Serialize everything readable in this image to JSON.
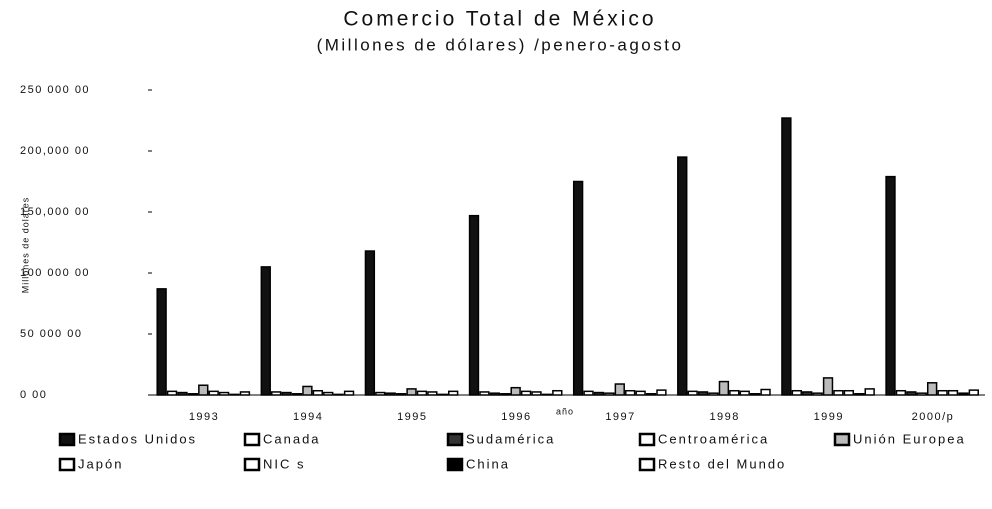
{
  "chart_data": {
    "type": "bar",
    "title": "Comercio Total de México",
    "subtitle": "(Millones de dólares) /penero-agosto",
    "x_label": "año",
    "y_label": "Millones de dolares",
    "categories": [
      "1993",
      "1994",
      "1995",
      "1996",
      "1997",
      "1998",
      "1999",
      "2000/p"
    ],
    "series": [
      {
        "name": "Estados Unidos",
        "color": "#111111",
        "values": [
          87000,
          105000,
          118000,
          147000,
          175000,
          195000,
          227000,
          179000
        ]
      },
      {
        "name": "Canada",
        "color": "#ffffff",
        "values": [
          3000,
          2500,
          2000,
          2500,
          3000,
          3000,
          3500,
          3500
        ]
      },
      {
        "name": "Sudamérica",
        "color": "#333333",
        "values": [
          2000,
          2000,
          1500,
          1500,
          2000,
          2500,
          2500,
          2500
        ]
      },
      {
        "name": "Centroamérica",
        "color": "#ffffff",
        "values": [
          1000,
          1000,
          1000,
          1000,
          1500,
          1500,
          1500,
          1500
        ]
      },
      {
        "name": "Unión Europea",
        "color": "#bbbbbb",
        "values": [
          8000,
          7000,
          5000,
          6000,
          9000,
          11000,
          14000,
          10000
        ]
      },
      {
        "name": "Japón",
        "color": "#ffffff",
        "values": [
          3000,
          3500,
          3000,
          3000,
          3500,
          3500,
          3500,
          3500
        ]
      },
      {
        "name": "NIC s",
        "color": "#ffffff",
        "values": [
          2000,
          2000,
          2500,
          2500,
          3000,
          3000,
          3500,
          3500
        ]
      },
      {
        "name": "China",
        "color": "#000000",
        "values": [
          500,
          500,
          500,
          500,
          1000,
          1000,
          1000,
          1500
        ]
      },
      {
        "name": "Resto del Mundo",
        "color": "#ffffff",
        "values": [
          2500,
          3000,
          3000,
          3500,
          4000,
          4500,
          5000,
          4000
        ]
      }
    ],
    "ylim": [
      0,
      250000
    ],
    "yticks": [
      {
        "value": 0,
        "label": "0 00"
      },
      {
        "value": 50000,
        "label": "50 000 00"
      },
      {
        "value": 100000,
        "label": "100 000 00"
      },
      {
        "value": 150000,
        "label": "150,000 00"
      },
      {
        "value": 200000,
        "label": "200,000 00"
      },
      {
        "value": 250000,
        "label": "250 000 00"
      }
    ],
    "grid": false
  }
}
